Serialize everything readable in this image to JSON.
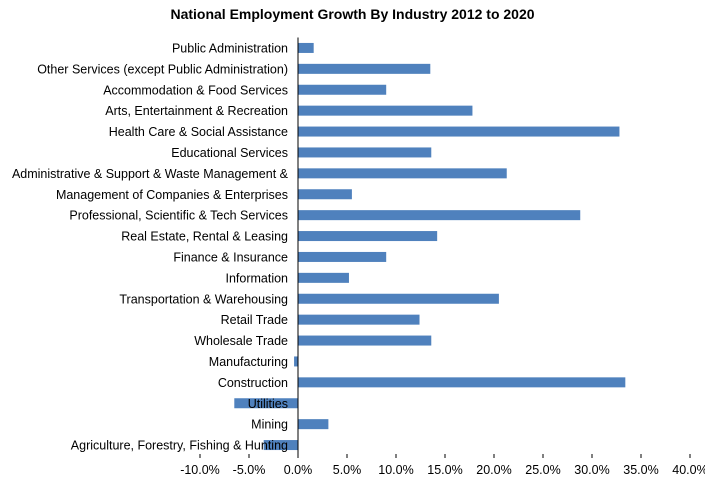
{
  "chart_data": {
    "type": "bar",
    "orientation": "horizontal",
    "title": "National Employment Growth By Industry 2012 to 2020",
    "xlabel": "",
    "ylabel": "",
    "xlim": [
      -0.1,
      0.4
    ],
    "grid": false,
    "legend": "none",
    "bar_color": "#4f81bd",
    "x_ticks": [
      "-10.0%",
      "-5.0%",
      "0.0%",
      "5.0%",
      "10.0%",
      "15.0%",
      "20.0%",
      "25.0%",
      "30.0%",
      "35.0%",
      "40.0%"
    ],
    "x_tick_values": [
      -0.1,
      -0.05,
      0.0,
      0.05,
      0.1,
      0.15,
      0.2,
      0.25,
      0.3,
      0.35,
      0.4
    ],
    "categories": [
      "Public Administration",
      "Other Services (except Public Administration)",
      "Accommodation & Food Services",
      "Arts, Entertainment & Recreation",
      "Health Care & Social Assistance",
      "Educational Services",
      "Administrative & Support & Waste Management &",
      "Management of Companies & Enterprises",
      "Professional, Scientific & Tech Services",
      "Real Estate, Rental & Leasing",
      "Finance & Insurance",
      "Information",
      "Transportation & Warehousing",
      "Retail Trade",
      "Wholesale Trade",
      "Manufacturing",
      "Construction",
      "Utilities",
      "Mining",
      "Agriculture, Forestry, Fishing & Hunting"
    ],
    "values": [
      0.016,
      0.135,
      0.09,
      0.178,
      0.328,
      0.136,
      0.213,
      0.055,
      0.288,
      0.142,
      0.09,
      0.052,
      0.205,
      0.124,
      0.136,
      -0.004,
      0.334,
      -0.065,
      0.031,
      -0.035
    ]
  }
}
